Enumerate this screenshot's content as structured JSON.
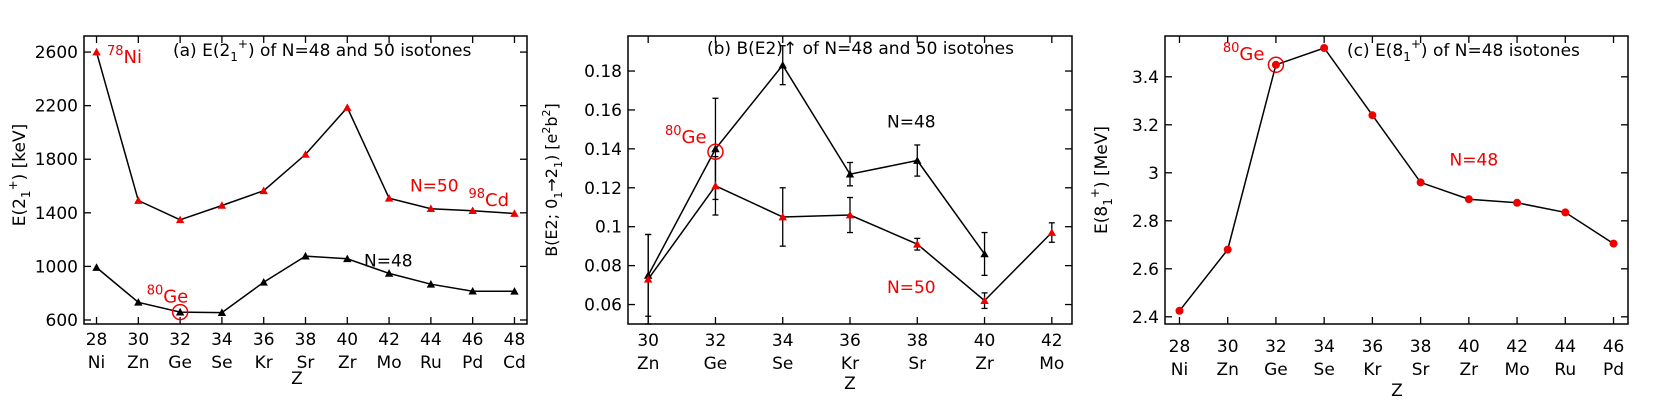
{
  "colors": {
    "black": "#000000",
    "red": "#ee0000"
  },
  "chart_data": [
    {
      "type": "line",
      "title": "(a) E(2",
      "title_sub": "1",
      "title_sup": "+",
      "title_tail": ") of N=48 and 50 isotones",
      "ylabel_main": "E(2",
      "ylabel_sub": "1",
      "ylabel_sup": "+",
      "ylabel_tail": ") [keV]",
      "xlabel": "Z",
      "xlim": [
        27.4,
        48.6
      ],
      "ylim": [
        570,
        2720
      ],
      "yticks": [
        600,
        1000,
        1400,
        1800,
        2200,
        2600
      ],
      "ytick_labels": [
        "600",
        "1000",
        "1400",
        "1800",
        "2200",
        "2600"
      ],
      "x": [
        28,
        30,
        32,
        34,
        36,
        38,
        40,
        42,
        44,
        46,
        48
      ],
      "xtick_labels": [
        "28",
        "30",
        "32",
        "34",
        "36",
        "38",
        "40",
        "42",
        "44",
        "46",
        "48"
      ],
      "elements": [
        "Ni",
        "Zn",
        "Ge",
        "Se",
        "Kr",
        "Sr",
        "Zr",
        "Mo",
        "Ru",
        "Pd",
        "Cd"
      ],
      "series": [
        {
          "name": "N=50",
          "marker": "triangle",
          "color": "#ee0000",
          "values": [
            2600,
            1492,
            1348,
            1455,
            1565,
            1836,
            2186,
            1509,
            1431,
            1416,
            1395
          ]
        },
        {
          "name": "N=48",
          "marker": "triangle",
          "color": "#000000",
          "values": [
            992,
            732,
            659,
            655,
            882,
            1077,
            1057,
            948,
            867,
            815,
            814
          ]
        }
      ],
      "labels": [
        {
          "text": "N=50",
          "x": 43,
          "y": 1560,
          "color": "#ee0000"
        },
        {
          "text": "N=48",
          "x": 40.8,
          "y": 1000,
          "color": "#000000"
        },
        {
          "sup": "78",
          "base": "Ni",
          "x": 28.5,
          "y": 2520,
          "color": "#ee0000"
        },
        {
          "sup": "98",
          "base": "Cd",
          "x": 45.8,
          "y": 1450,
          "color": "#ee0000"
        },
        {
          "sup": "80",
          "base": "Ge",
          "x": 30.4,
          "y": 730,
          "color": "#ee0000"
        }
      ],
      "circle": {
        "x": 32,
        "y": 659
      }
    },
    {
      "type": "line",
      "title": "(b) B(E2)↑ of N=48 and 50 isotones",
      "ylabel_main": "B(E2; 0",
      "ylabel_sub1": "1",
      "ylabel_mid": "→2",
      "ylabel_sub2": "1",
      "ylabel_post": ") [e",
      "ylabel_sup1": "2",
      "ylabel_b": "b",
      "ylabel_sup2": "2",
      "ylabel_end": "]",
      "xlabel": "Z",
      "xlim": [
        29.4,
        42.6
      ],
      "ylim": [
        0.05,
        0.198
      ],
      "yticks": [
        0.06,
        0.08,
        0.1,
        0.12,
        0.14,
        0.16,
        0.18
      ],
      "ytick_labels": [
        "0.06",
        "0.08",
        "0.1",
        "0.12",
        "0.14",
        "0.16",
        "0.18"
      ],
      "x": [
        30,
        32,
        34,
        36,
        38,
        40,
        42
      ],
      "xtick_labels": [
        "30",
        "32",
        "34",
        "36",
        "38",
        "40",
        "42"
      ],
      "elements": [
        "Zn",
        "Ge",
        "Se",
        "Kr",
        "Sr",
        "Zr",
        "Mo"
      ],
      "series": [
        {
          "name": "N=48",
          "marker": "triangle",
          "color": "#000000",
          "x": [
            30,
            32,
            34,
            36,
            38,
            40
          ],
          "values": [
            0.075,
            0.14,
            0.183,
            0.127,
            0.134,
            0.086
          ],
          "errors": [
            0.021,
            0.026,
            0.01,
            0.006,
            0.008,
            0.011
          ]
        },
        {
          "name": "N=50",
          "marker": "triangle",
          "color": "#ee0000",
          "x": [
            30,
            32,
            34,
            36,
            38,
            40,
            42
          ],
          "values": [
            0.073,
            0.121,
            0.105,
            0.106,
            0.091,
            0.062,
            0.097
          ],
          "errors": [
            0.023,
            0.015,
            0.015,
            0.009,
            0.003,
            0.004,
            0.005
          ]
        }
      ],
      "labels": [
        {
          "text": "N=48",
          "x": 37.1,
          "y": 0.151,
          "color": "#000000"
        },
        {
          "text": "N=50",
          "x": 37.1,
          "y": 0.066,
          "color": "#ee0000"
        },
        {
          "sup": "80",
          "base": "Ge",
          "x": 30.5,
          "y": 0.143,
          "color": "#ee0000"
        }
      ],
      "circle": {
        "x": 32,
        "y": 0.1385
      }
    },
    {
      "type": "line",
      "title": "(c) E(8",
      "title_sub": "1",
      "title_sup": "+",
      "title_tail": ") of N=48 isotones",
      "ylabel_main": "E(8",
      "ylabel_sub": "1",
      "ylabel_sup": "+",
      "ylabel_tail": ") [MeV]",
      "xlabel": "Z",
      "xlim": [
        27.4,
        46.6
      ],
      "ylim": [
        2.37,
        3.57
      ],
      "yticks": [
        2.4,
        2.6,
        2.8,
        3.0,
        3.2,
        3.4
      ],
      "ytick_labels": [
        "2.4",
        "2.6",
        "2.8",
        "3",
        "3.2",
        "3.4"
      ],
      "x": [
        28,
        30,
        32,
        34,
        36,
        38,
        40,
        42,
        44,
        46
      ],
      "xtick_labels": [
        "28",
        "30",
        "32",
        "34",
        "36",
        "38",
        "40",
        "42",
        "44",
        "46"
      ],
      "elements": [
        "Ni",
        "Zn",
        "Ge",
        "Se",
        "Kr",
        "Sr",
        "Zr",
        "Mo",
        "Ru",
        "Pd"
      ],
      "series": [
        {
          "name": "N=48",
          "marker": "circle",
          "color": "#ee0000",
          "values": [
            2.425,
            2.68,
            3.45,
            3.52,
            3.24,
            2.96,
            2.89,
            2.875,
            2.835,
            2.705
          ]
        }
      ],
      "labels": [
        {
          "text": "N=48",
          "x": 39.2,
          "y": 3.03,
          "color": "#ee0000"
        },
        {
          "sup": "80",
          "base": "Ge",
          "x": 29.8,
          "y": 3.47,
          "color": "#ee0000"
        }
      ],
      "circle": {
        "x": 32,
        "y": 3.45
      }
    }
  ]
}
